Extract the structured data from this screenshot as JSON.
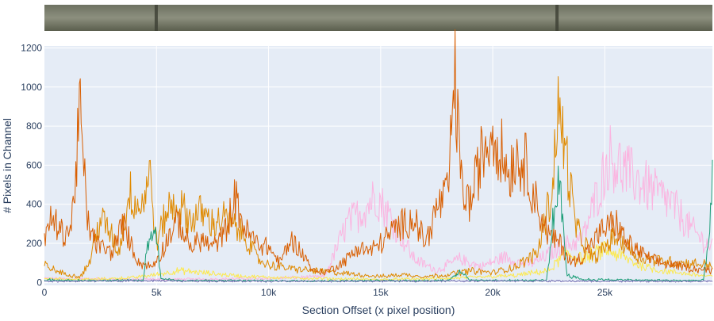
{
  "chart_data": {
    "type": "line",
    "title": "",
    "xlabel": "Section Offset (x pixel position)",
    "ylabel": "# Pixels in Channel",
    "xlim": [
      0,
      29800
    ],
    "ylim": [
      -15,
      1210
    ],
    "x_ticks": [
      {
        "value": 0,
        "label": "0"
      },
      {
        "value": 5000,
        "label": "5k"
      },
      {
        "value": 10000,
        "label": "10k"
      },
      {
        "value": 15000,
        "label": "15k"
      },
      {
        "value": 20000,
        "label": "20k"
      },
      {
        "value": 25000,
        "label": "25k"
      }
    ],
    "y_ticks": [
      {
        "value": 0,
        "label": "0"
      },
      {
        "value": 200,
        "label": "200"
      },
      {
        "value": 400,
        "label": "400"
      },
      {
        "value": 600,
        "label": "600"
      },
      {
        "value": 800,
        "label": "800"
      },
      {
        "value": 1000,
        "label": "1000"
      },
      {
        "value": 1200,
        "label": "1200"
      }
    ],
    "grid": true,
    "legend": "none",
    "colors": {
      "plot_bg": "#e5ecf6",
      "grid": "#ffffff",
      "axis_text": "#2a3f5f",
      "strip": "#5f6350"
    },
    "series": [
      {
        "color": "#fbb4e0",
        "x": [
          0,
          5000,
          10000,
          12500,
          13500,
          14300,
          14800,
          15500,
          16500,
          17500,
          18500,
          19500,
          20500,
          21500,
          22000,
          23000,
          24000,
          24800,
          25200,
          26000,
          27000,
          28000,
          28800,
          29500,
          29800
        ],
        "values": [
          20,
          15,
          20,
          30,
          300,
          380,
          450,
          320,
          120,
          60,
          120,
          80,
          130,
          90,
          110,
          180,
          220,
          500,
          650,
          560,
          480,
          400,
          280,
          200,
          180
        ]
      },
      {
        "color": "#fce94f",
        "x": [
          0,
          2000,
          4000,
          5000,
          6000,
          9000,
          12000,
          15000,
          18000,
          21000,
          22500,
          23300,
          24000,
          25000,
          25800,
          26500,
          27500,
          29000,
          29800
        ],
        "values": [
          20,
          15,
          25,
          40,
          60,
          30,
          20,
          15,
          20,
          35,
          60,
          150,
          120,
          170,
          130,
          90,
          60,
          40,
          30
        ]
      },
      {
        "color": "#e08a00",
        "x": [
          0,
          500,
          1000,
          1600,
          2000,
          2500,
          3000,
          3300,
          3800,
          4300,
          4700,
          5000,
          5500,
          6000,
          6500,
          7000,
          7500,
          8000,
          8500,
          9000,
          9500,
          10000,
          11000,
          12000,
          13000,
          14000,
          15000,
          16000,
          17000,
          18000,
          19000,
          20000,
          21000,
          22000,
          22700,
          22850,
          23200,
          23700,
          24500,
          25500,
          26500,
          27500,
          28500,
          29800
        ],
        "values": [
          90,
          60,
          40,
          30,
          100,
          330,
          240,
          150,
          460,
          380,
          560,
          200,
          380,
          400,
          320,
          360,
          300,
          330,
          280,
          230,
          120,
          90,
          70,
          60,
          50,
          40,
          30,
          40,
          30,
          40,
          60,
          50,
          80,
          150,
          500,
          880,
          720,
          280,
          120,
          240,
          130,
          110,
          100,
          90
        ]
      },
      {
        "color": "#d95f02",
        "x": [
          0,
          300,
          800,
          1200,
          1600,
          1900,
          2300,
          3000,
          3500,
          4200,
          4800,
          5200,
          5600,
          6000,
          6500,
          7000,
          7500,
          8000,
          8500,
          9000,
          9500,
          10000,
          10500,
          11000,
          11500,
          12000,
          12500,
          13000,
          13500,
          14000,
          14500,
          15000,
          15500,
          16000,
          16500,
          17000,
          17500,
          18000,
          18300,
          18600,
          19000,
          19500,
          20000,
          20300,
          20700,
          21000,
          21500,
          22000,
          22500,
          23000,
          23500,
          24000,
          24500,
          25000,
          25500,
          26000,
          26500,
          27000,
          27500,
          28000,
          28500,
          29000,
          29800
        ],
        "values": [
          200,
          330,
          250,
          280,
          880,
          320,
          200,
          150,
          300,
          100,
          80,
          150,
          250,
          310,
          180,
          220,
          180,
          240,
          430,
          260,
          200,
          180,
          100,
          220,
          150,
          60,
          50,
          80,
          120,
          180,
          160,
          200,
          260,
          300,
          330,
          200,
          380,
          450,
          1060,
          500,
          400,
          650,
          780,
          700,
          560,
          650,
          600,
          380,
          240,
          200,
          100,
          130,
          210,
          280,
          300,
          200,
          160,
          120,
          100,
          90,
          80,
          70,
          60
        ]
      },
      {
        "color": "#1b9e77",
        "x": [
          0,
          1000,
          4400,
          4600,
          4800,
          5000,
          5200,
          6000,
          12000,
          18000,
          18600,
          19000,
          22400,
          22600,
          22850,
          23100,
          23300,
          24000,
          28000,
          29400,
          29600,
          29800
        ],
        "values": [
          15,
          10,
          10,
          200,
          260,
          240,
          20,
          10,
          8,
          10,
          60,
          10,
          10,
          200,
          520,
          380,
          40,
          15,
          10,
          10,
          200,
          500
        ]
      },
      {
        "color": "#7570b3",
        "x": [
          0,
          5000,
          10000,
          15000,
          20000,
          25000,
          29800
        ],
        "values": [
          5,
          8,
          5,
          6,
          8,
          6,
          5
        ]
      }
    ]
  }
}
